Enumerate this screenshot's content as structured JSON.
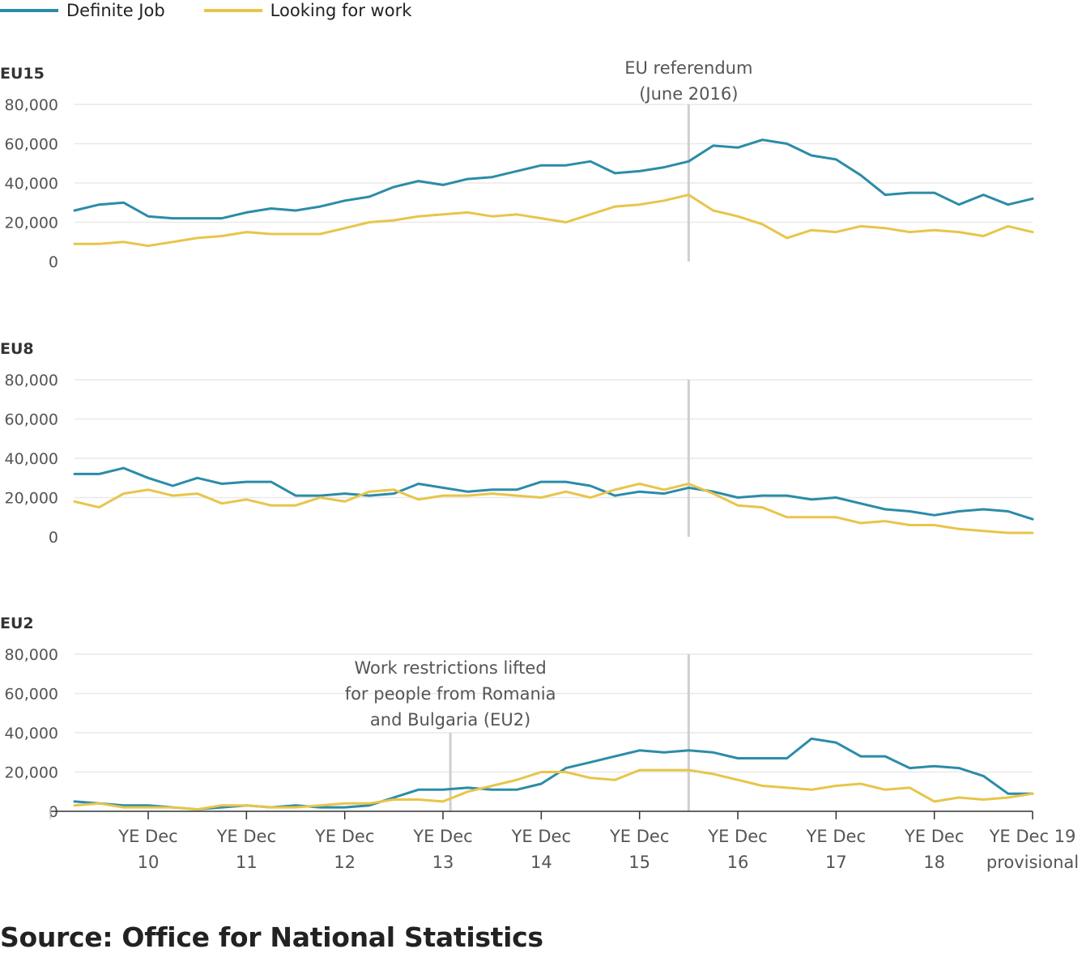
{
  "legend": [
    {
      "label": "Definite Job",
      "color": "#2b8ca8"
    },
    {
      "label": "Looking for work",
      "color": "#e8c54a"
    }
  ],
  "source": "Source: Office for National Statistics",
  "chart_data": {
    "type": "line",
    "x_tick_labels": [
      [
        "YE Dec",
        "10"
      ],
      [
        "YE Dec",
        "11"
      ],
      [
        "YE Dec",
        "12"
      ],
      [
        "YE Dec",
        "13"
      ],
      [
        "YE Dec",
        "14"
      ],
      [
        "YE Dec",
        "15"
      ],
      [
        "YE Dec",
        "16"
      ],
      [
        "YE Dec",
        "17"
      ],
      [
        "YE Dec",
        "18"
      ],
      [
        "YE Dec 19",
        "provisional"
      ]
    ],
    "y_ticks": [
      "80,000",
      "60,000",
      "40,000",
      "20,000",
      "0"
    ],
    "ylim": [
      0,
      80000
    ],
    "grid": true,
    "legend_placement": "top-left",
    "panels": [
      {
        "title": "EU15",
        "series": [
          {
            "name": "Definite Job",
            "values": [
              26000,
              29000,
              30000,
              23000,
              22000,
              22000,
              22000,
              25000,
              27000,
              26000,
              28000,
              31000,
              33000,
              38000,
              41000,
              39000,
              42000,
              43000,
              46000,
              49000,
              49000,
              51000,
              45000,
              46000,
              48000,
              51000,
              59000,
              58000,
              62000,
              60000,
              54000,
              52000,
              44000,
              34000,
              35000,
              35000,
              29000,
              34000,
              29000,
              32000
            ]
          },
          {
            "name": "Looking for work",
            "values": [
              9000,
              9000,
              10000,
              8000,
              10000,
              12000,
              13000,
              15000,
              14000,
              14000,
              14000,
              17000,
              20000,
              21000,
              23000,
              24000,
              25000,
              23000,
              24000,
              22000,
              20000,
              24000,
              28000,
              29000,
              31000,
              34000,
              26000,
              23000,
              19000,
              12000,
              16000,
              15000,
              18000,
              17000,
              15000,
              16000,
              15000,
              13000,
              18000,
              15000
            ]
          }
        ],
        "annotations": [
          {
            "text": [
              "EU referendum",
              "(June 2016)"
            ],
            "x_index": 25
          }
        ]
      },
      {
        "title": "EU8",
        "series": [
          {
            "name": "Definite Job",
            "values": [
              32000,
              32000,
              35000,
              30000,
              26000,
              30000,
              27000,
              28000,
              28000,
              21000,
              21000,
              22000,
              21000,
              22000,
              27000,
              25000,
              23000,
              24000,
              24000,
              28000,
              28000,
              26000,
              21000,
              23000,
              22000,
              25000,
              23000,
              20000,
              21000,
              21000,
              19000,
              20000,
              17000,
              14000,
              13000,
              11000,
              13000,
              14000,
              13000,
              9000
            ]
          },
          {
            "name": "Looking for work",
            "values": [
              18000,
              15000,
              22000,
              24000,
              21000,
              22000,
              17000,
              19000,
              16000,
              16000,
              20000,
              18000,
              23000,
              24000,
              19000,
              21000,
              21000,
              22000,
              21000,
              20000,
              23000,
              20000,
              24000,
              27000,
              24000,
              27000,
              22000,
              16000,
              15000,
              10000,
              10000,
              10000,
              7000,
              8000,
              6000,
              6000,
              4000,
              3000,
              2000,
              2000
            ]
          }
        ],
        "annotations": [
          {
            "text": [],
            "x_index": 25
          }
        ]
      },
      {
        "title": "EU2",
        "series": [
          {
            "name": "Definite Job",
            "values": [
              5000,
              4000,
              3000,
              3000,
              2000,
              1000,
              2000,
              3000,
              2000,
              3000,
              2000,
              2000,
              3000,
              7000,
              11000,
              11000,
              12000,
              11000,
              11000,
              14000,
              22000,
              25000,
              28000,
              31000,
              30000,
              31000,
              30000,
              27000,
              27000,
              27000,
              37000,
              35000,
              28000,
              28000,
              22000,
              23000,
              22000,
              18000,
              9000,
              9000
            ]
          },
          {
            "name": "Looking for work",
            "values": [
              3000,
              4000,
              2000,
              2000,
              2000,
              1000,
              3000,
              3000,
              2000,
              2000,
              3000,
              4000,
              4000,
              6000,
              6000,
              5000,
              10000,
              13000,
              16000,
              20000,
              20000,
              17000,
              16000,
              21000,
              21000,
              21000,
              19000,
              16000,
              13000,
              12000,
              11000,
              13000,
              14000,
              11000,
              12000,
              5000,
              7000,
              6000,
              7000,
              9000
            ]
          }
        ],
        "annotations": [
          {
            "text": [
              "Work restrictions lifted",
              "for people from Romania",
              "and Bulgaria (EU2)"
            ],
            "x_index": 15.3
          },
          {
            "text": [],
            "x_index": 25
          }
        ]
      }
    ]
  }
}
